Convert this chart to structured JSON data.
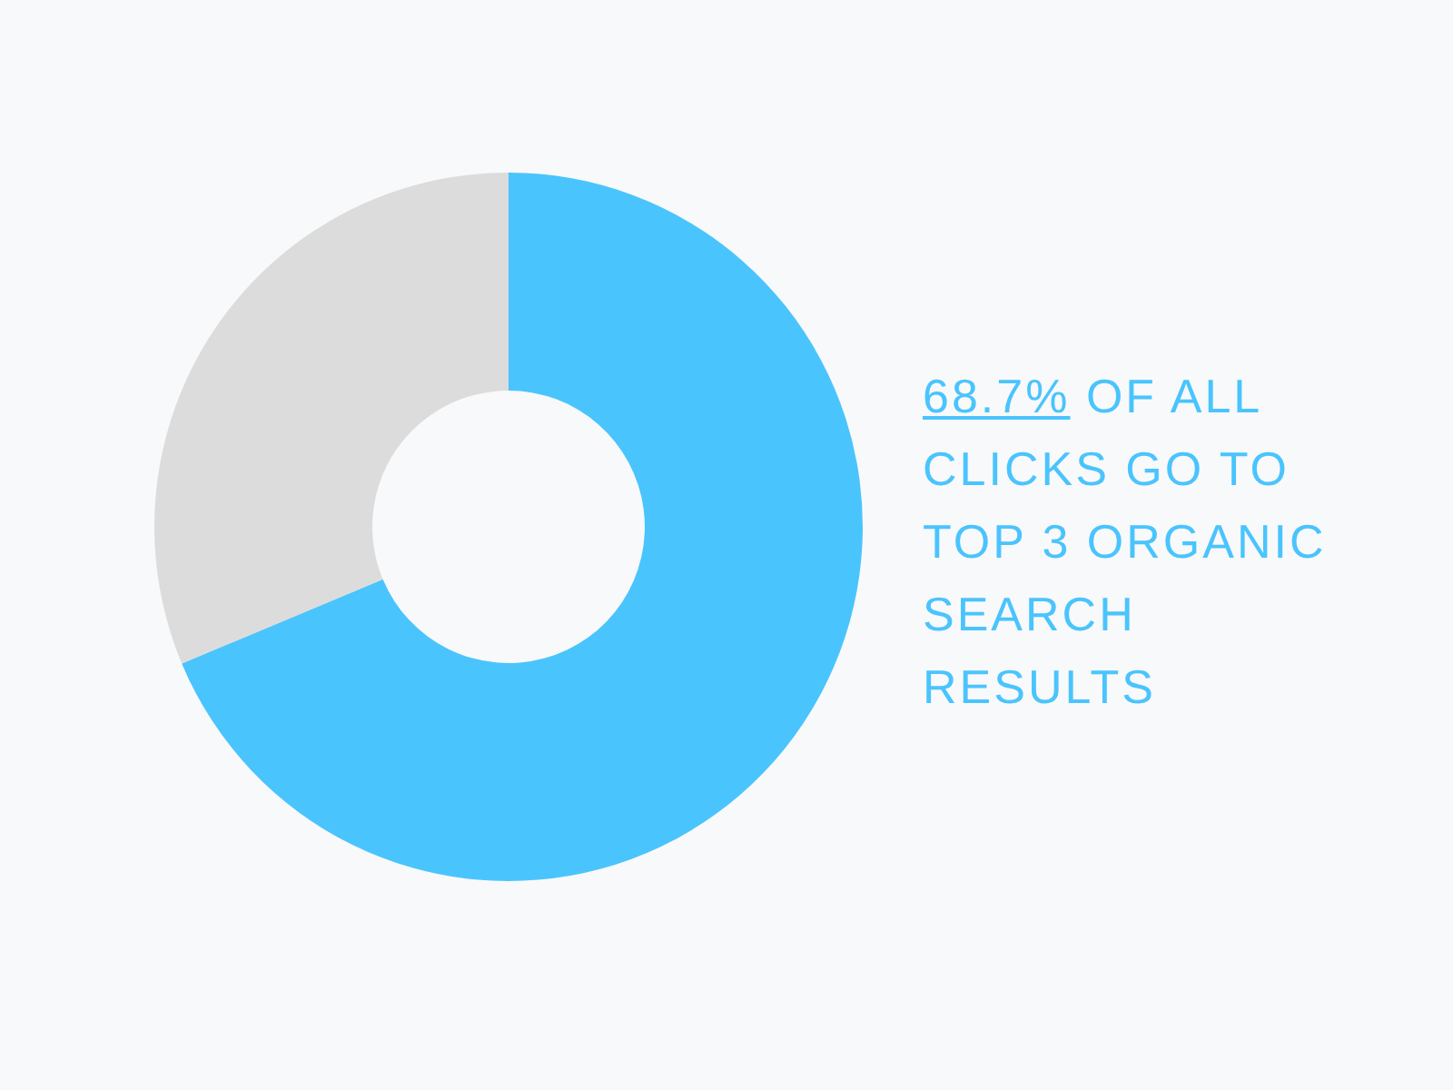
{
  "chart_data": {
    "type": "donut",
    "categories": [
      null,
      null
    ],
    "values": [
      68.7,
      31.3
    ],
    "colors": [
      "#4ac4fd",
      "#dcdcdc"
    ],
    "annotations": [
      "68.7% OF ALL\nCLICKS GO TO\nTOP 3 ORGANIC\nSEARCH\nRESULTS"
    ]
  }
}
